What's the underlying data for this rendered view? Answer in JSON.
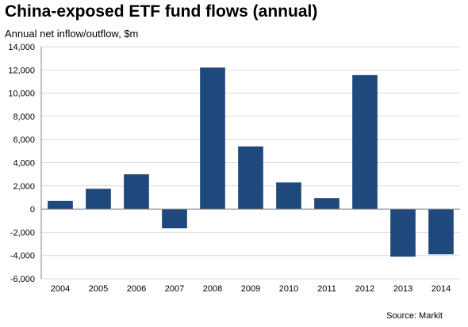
{
  "title": "China-exposed ETF fund flows (annual)",
  "subtitle": "Annual  net inflow/outflow, $m",
  "source": "Source: Markit",
  "colors": {
    "bar": "#1f497d",
    "grid": "#d9d9d9",
    "axis": "#868686"
  },
  "chart_data": {
    "type": "bar",
    "title": "China-exposed ETF fund flows (annual)",
    "ylabel": "Annual  net inflow/outflow, $m",
    "categories": [
      "2004",
      "2005",
      "2006",
      "2007",
      "2008",
      "2009",
      "2010",
      "2011",
      "2012",
      "2013",
      "2014"
    ],
    "values": [
      700,
      1750,
      3000,
      -1650,
      12200,
      5400,
      2300,
      950,
      11550,
      -4100,
      -3900
    ],
    "ylim": [
      -6000,
      14000
    ],
    "yticks": [
      -6000,
      -4000,
      -2000,
      0,
      2000,
      4000,
      6000,
      8000,
      10000,
      12000,
      14000
    ],
    "ytick_labels": [
      "-6,000",
      "-4,000",
      "-2,000",
      "0",
      "2,000",
      "4,000",
      "6,000",
      "8,000",
      "10,000",
      "12,000",
      "14,000"
    ],
    "grid": true,
    "legend": "none"
  }
}
